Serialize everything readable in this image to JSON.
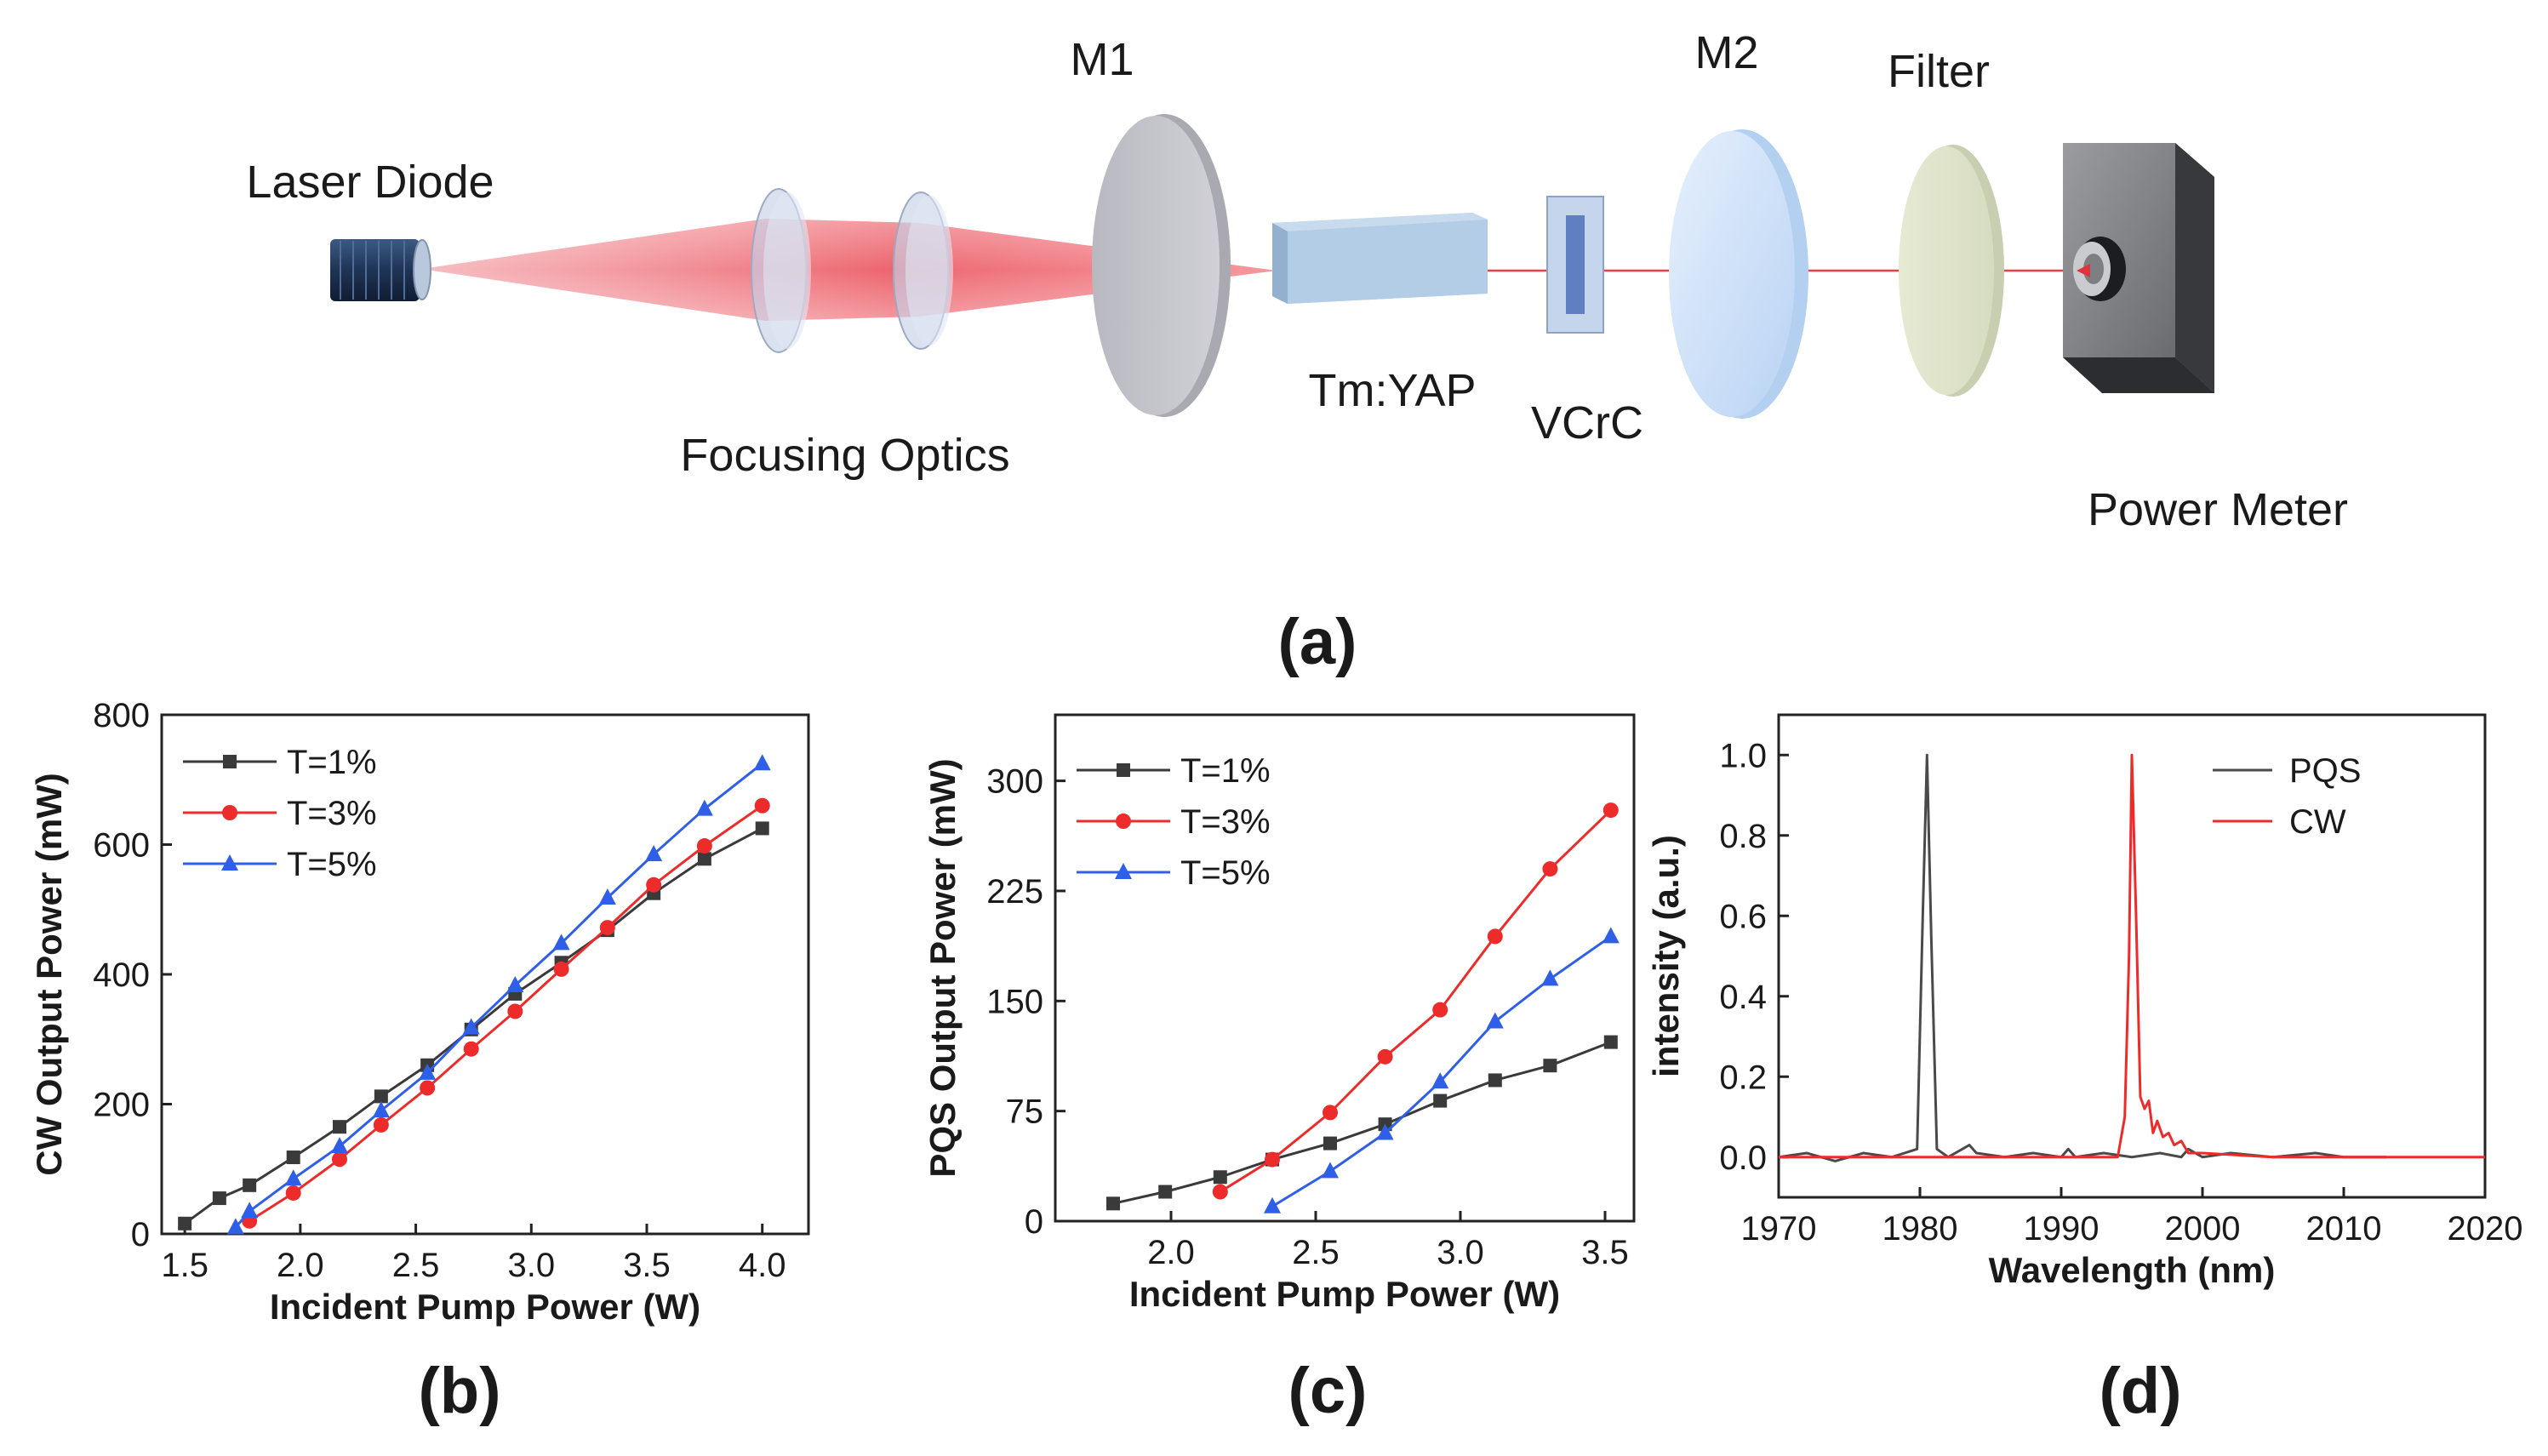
{
  "diagram": {
    "labels": {
      "laser_diode": "Laser Diode",
      "focusing_optics": "Focusing Optics",
      "m1": "M1",
      "crystal": "Tm:YAP",
      "saturable_absorber": "VCrC",
      "m2": "M2",
      "filter": "Filter",
      "power_meter": "Power Meter"
    },
    "caption": "(a)"
  },
  "chart_data": [
    {
      "id": "b",
      "type": "line",
      "caption": "(b)",
      "title": "",
      "xlabel": "Incident Pump Power (W)",
      "ylabel": "CW Output Power (mW)",
      "xlim": [
        1.4,
        4.2
      ],
      "ylim": [
        0,
        800
      ],
      "xticks": [
        1.5,
        2.0,
        2.5,
        3.0,
        3.5,
        4.0
      ],
      "xtick_labels": [
        "1.5",
        "2.0",
        "2.5",
        "3.0",
        "3.5",
        "4.0"
      ],
      "yticks": [
        0,
        200,
        400,
        600,
        800
      ],
      "ytick_labels": [
        "0",
        "200",
        "400",
        "600",
        "800"
      ],
      "legend_position": "top-left",
      "series": [
        {
          "name": "T=1%",
          "color": "#3a3a3a",
          "marker": "square",
          "x": [
            1.5,
            1.65,
            1.78,
            1.97,
            2.17,
            2.35,
            2.55,
            2.74,
            2.93,
            3.13,
            3.33,
            3.53,
            3.75,
            4.0
          ],
          "y": [
            16,
            55,
            75,
            118,
            165,
            212,
            260,
            315,
            370,
            418,
            468,
            525,
            578,
            625
          ]
        },
        {
          "name": "T=3%",
          "color": "#ee2b2b",
          "marker": "circle",
          "x": [
            1.78,
            1.97,
            2.17,
            2.35,
            2.55,
            2.74,
            2.93,
            3.13,
            3.33,
            3.53,
            3.75,
            4.0
          ],
          "y": [
            20,
            63,
            115,
            168,
            225,
            285,
            343,
            408,
            472,
            538,
            598,
            660
          ]
        },
        {
          "name": "T=5%",
          "color": "#2f5fe8",
          "marker": "triangle",
          "x": [
            1.72,
            1.78,
            1.97,
            2.17,
            2.35,
            2.55,
            2.74,
            2.93,
            3.13,
            3.33,
            3.53,
            3.75,
            4.0
          ],
          "y": [
            10,
            35,
            85,
            135,
            190,
            248,
            318,
            383,
            448,
            518,
            585,
            655,
            725
          ]
        }
      ]
    },
    {
      "id": "c",
      "type": "line",
      "caption": "(c)",
      "title": "",
      "xlabel": "Incident Pump Power (W)",
      "ylabel": "PQS Output Power (mW)",
      "xlim": [
        1.6,
        3.6
      ],
      "ylim": [
        0,
        345
      ],
      "xticks": [
        2.0,
        2.5,
        3.0,
        3.5
      ],
      "xtick_labels": [
        "2.0",
        "2.5",
        "3.0",
        "3.5"
      ],
      "yticks": [
        0,
        75,
        150,
        225,
        300
      ],
      "ytick_labels": [
        "0",
        "75",
        "150",
        "225",
        "300"
      ],
      "legend_position": "top-left",
      "series": [
        {
          "name": "T=1%",
          "color": "#3a3a3a",
          "marker": "square",
          "x": [
            1.8,
            1.98,
            2.17,
            2.35,
            2.55,
            2.74,
            2.93,
            3.12,
            3.31,
            3.52
          ],
          "y": [
            12,
            20,
            30,
            42,
            53,
            66,
            82,
            96,
            106,
            122
          ]
        },
        {
          "name": "T=3%",
          "color": "#ee2b2b",
          "marker": "circle",
          "x": [
            2.17,
            2.35,
            2.55,
            2.74,
            2.93,
            3.12,
            3.31,
            3.52
          ],
          "y": [
            20,
            42,
            74,
            112,
            144,
            194,
            240,
            280
          ]
        },
        {
          "name": "T=5%",
          "color": "#2f5fe8",
          "marker": "triangle",
          "x": [
            2.35,
            2.55,
            2.74,
            2.93,
            3.12,
            3.31,
            3.52
          ],
          "y": [
            10,
            34,
            60,
            95,
            136,
            165,
            194
          ]
        }
      ]
    },
    {
      "id": "d",
      "type": "line",
      "caption": "(d)",
      "title": "",
      "xlabel": "Wavelength (nm)",
      "ylabel": "intensity (a.u.)",
      "xlim": [
        1970,
        2020
      ],
      "ylim": [
        -0.1,
        1.1
      ],
      "xticks": [
        1970,
        1980,
        1990,
        2000,
        2010,
        2020
      ],
      "xtick_labels": [
        "1970",
        "1980",
        "1990",
        "2000",
        "2010",
        "2020"
      ],
      "yticks": [
        0.0,
        0.2,
        0.4,
        0.6,
        0.8,
        1.0
      ],
      "ytick_labels": [
        "0.0",
        "0.2",
        "0.4",
        "0.6",
        "0.8",
        "1.0"
      ],
      "legend_position": "top-right",
      "series": [
        {
          "name": "PQS",
          "color": "#4a4a4a",
          "marker": "none",
          "x": [
            1970,
            1972,
            1974,
            1976,
            1978,
            1979.8,
            1980.2,
            1980.5,
            1980.8,
            1981.2,
            1982,
            1983,
            1983.5,
            1984,
            1986,
            1988,
            1990,
            1990.5,
            1991,
            1993,
            1995,
            1997,
            1998.5,
            1999,
            2000,
            2002,
            2005,
            2008,
            2010,
            2013
          ],
          "y": [
            0.0,
            0.01,
            -0.01,
            0.01,
            0.0,
            0.02,
            0.6,
            1.0,
            0.55,
            0.02,
            0.0,
            0.02,
            0.03,
            0.01,
            0.0,
            0.01,
            0.0,
            0.02,
            0.0,
            0.01,
            0.0,
            0.01,
            0.0,
            0.02,
            0.0,
            0.01,
            0.0,
            0.01,
            0.0,
            0.0
          ]
        },
        {
          "name": "CW",
          "color": "#ee2b2b",
          "marker": "none",
          "x": [
            1970,
            1975,
            1980,
            1985,
            1990,
            1994,
            1994.5,
            1994.8,
            1995.0,
            1995.3,
            1995.6,
            1995.9,
            1996.2,
            1996.5,
            1996.8,
            1997.2,
            1997.6,
            1998.0,
            1998.5,
            1999,
            2000,
            2005,
            2010,
            2015,
            2020
          ],
          "y": [
            0.0,
            0.0,
            0.0,
            0.0,
            0.0,
            0.0,
            0.1,
            0.5,
            1.0,
            0.6,
            0.15,
            0.12,
            0.14,
            0.06,
            0.09,
            0.05,
            0.06,
            0.03,
            0.04,
            0.01,
            0.01,
            0.0,
            0.0,
            0.0,
            0.0
          ]
        }
      ]
    }
  ]
}
